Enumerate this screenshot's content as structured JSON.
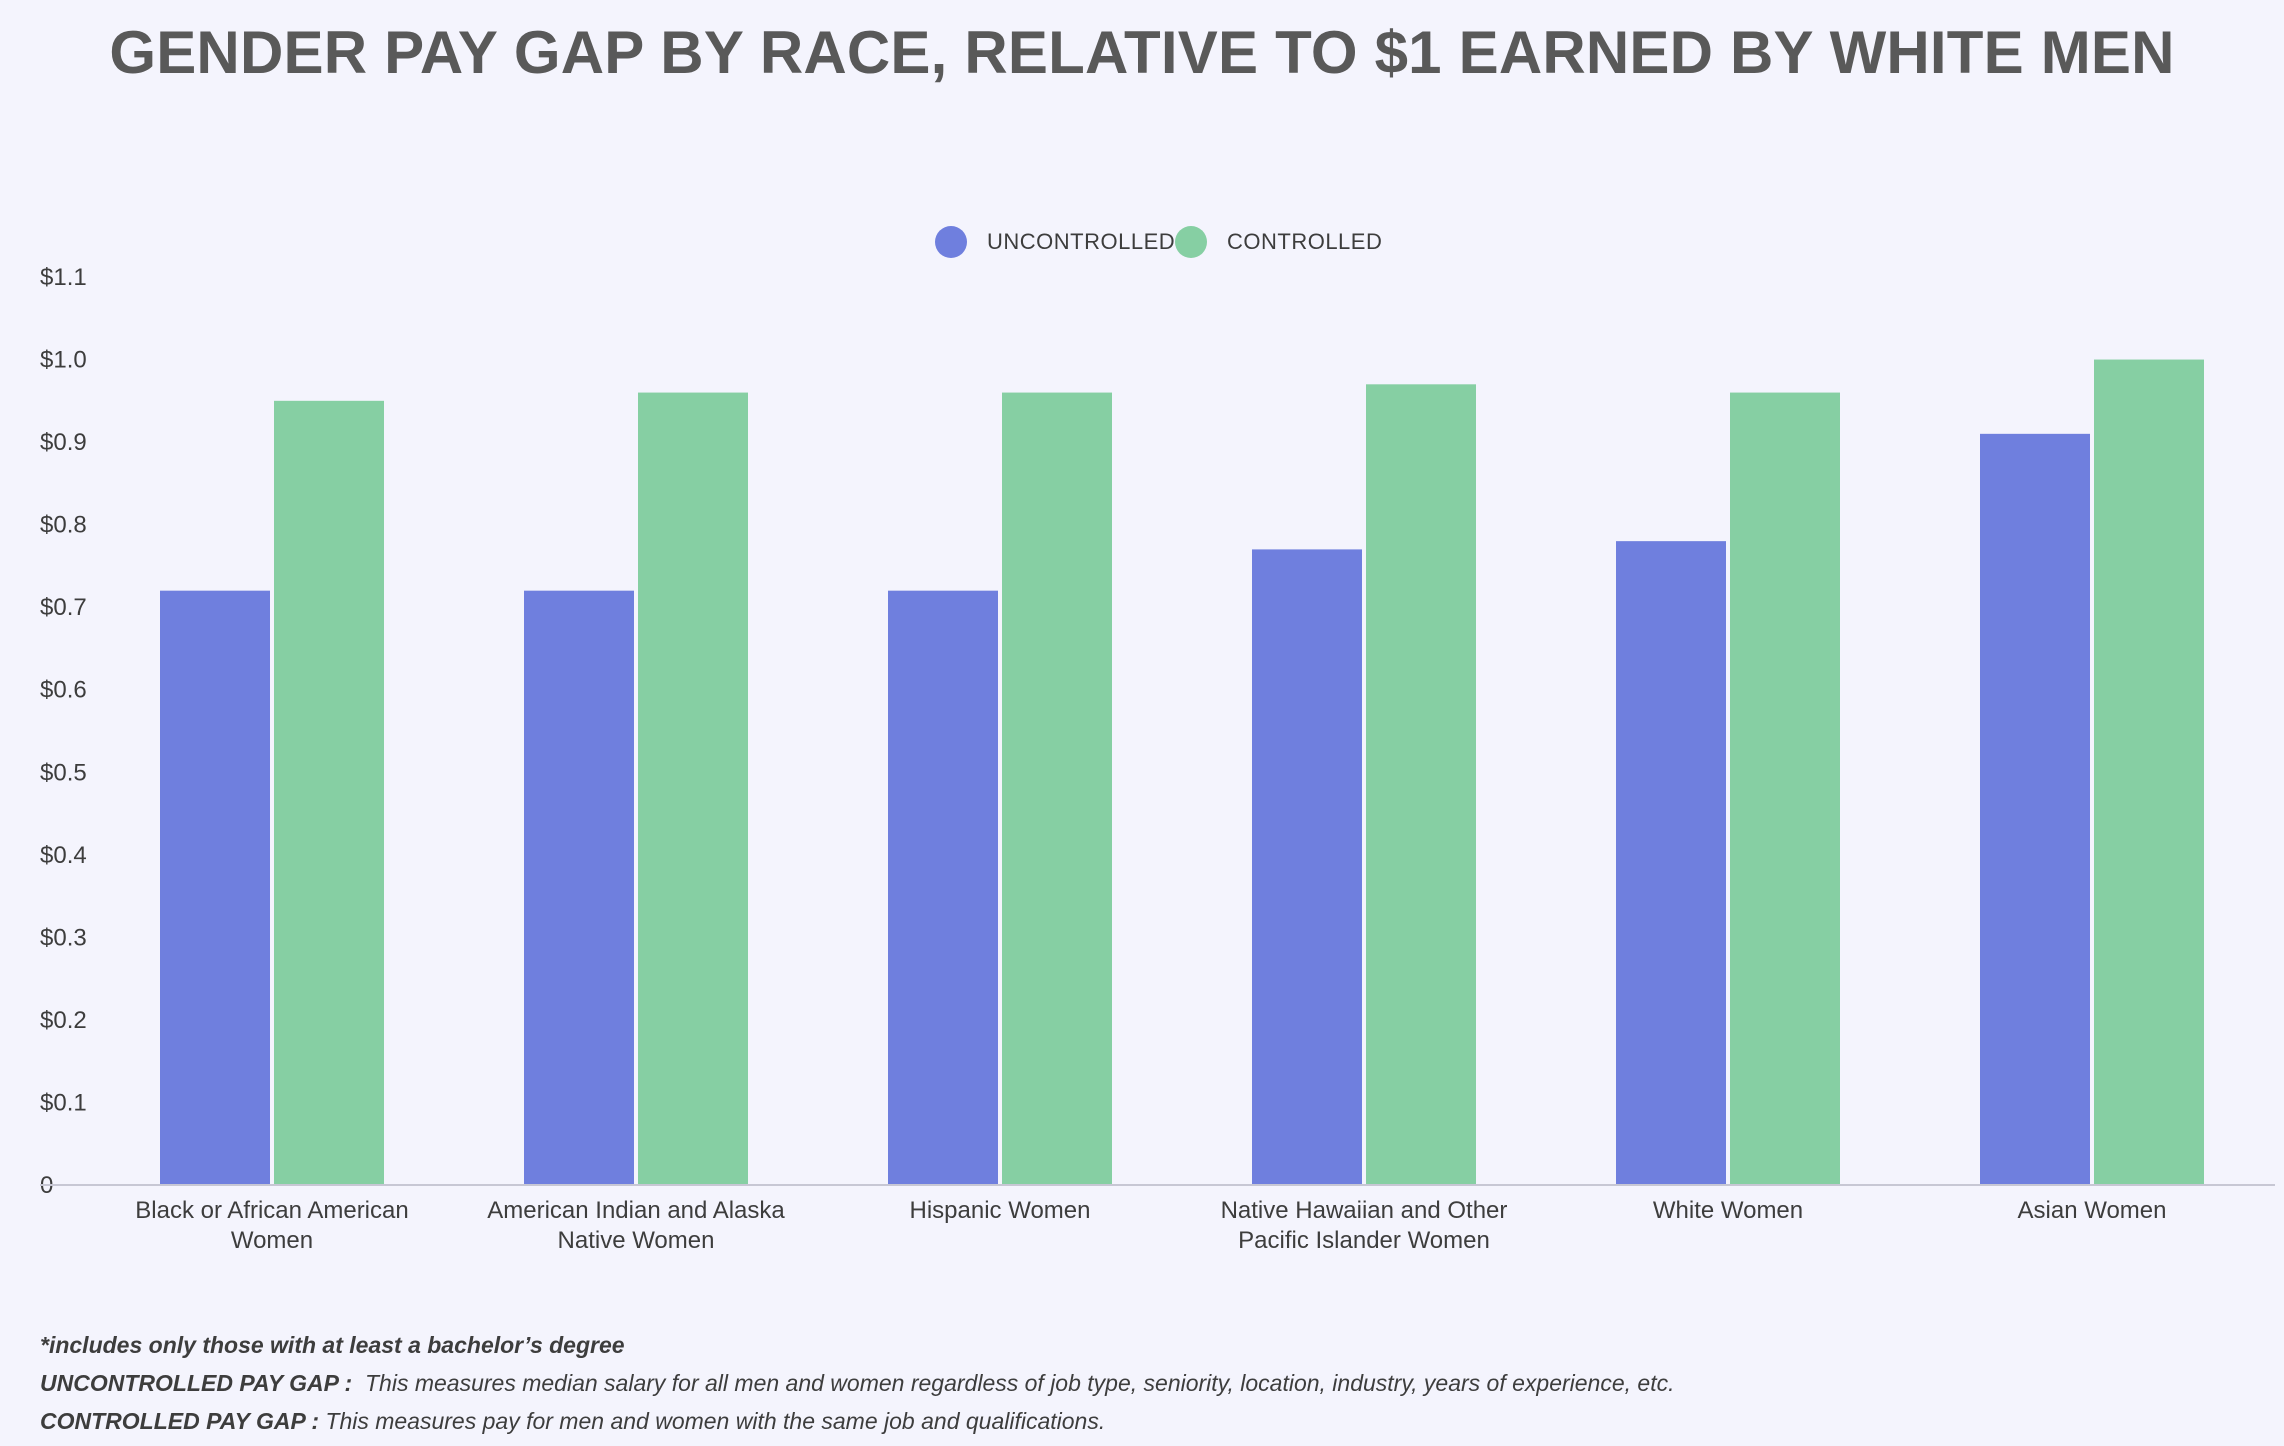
{
  "chart_data": {
    "type": "bar",
    "title": "GENDER PAY GAP BY RACE, RELATIVE TO $1 EARNED BY WHITE MEN",
    "categories": [
      [
        "Black or African American",
        "Women"
      ],
      [
        "American Indian and Alaska",
        "Native Women"
      ],
      [
        "Hispanic Women"
      ],
      [
        "Native Hawaiian and Other",
        "Pacific Islander Women"
      ],
      [
        "White Women"
      ],
      [
        "Asian Women"
      ]
    ],
    "series": [
      {
        "name": "UNCONTROLLED",
        "color": "#6f7fde",
        "values": [
          0.72,
          0.72,
          0.72,
          0.77,
          0.78,
          0.91
        ]
      },
      {
        "name": "CONTROLLED",
        "color": "#86cfa3",
        "values": [
          0.95,
          0.96,
          0.96,
          0.97,
          0.96,
          1.0
        ]
      }
    ],
    "ylim": [
      0,
      1.1
    ],
    "yticks": [
      {
        "value": 0,
        "label": "0"
      },
      {
        "value": 0.1,
        "label": "$0.1"
      },
      {
        "value": 0.2,
        "label": "$0.2"
      },
      {
        "value": 0.3,
        "label": "$0.3"
      },
      {
        "value": 0.4,
        "label": "$0.4"
      },
      {
        "value": 0.5,
        "label": "$0.5"
      },
      {
        "value": 0.6,
        "label": "$0.6"
      },
      {
        "value": 0.7,
        "label": "$0.7"
      },
      {
        "value": 0.8,
        "label": "$0.8"
      },
      {
        "value": 0.9,
        "label": "$0.9"
      },
      {
        "value": 1.0,
        "label": "$1.0"
      },
      {
        "value": 1.1,
        "label": "$1.1"
      }
    ],
    "xlabel": "",
    "ylabel": "",
    "grid": false,
    "legend_position": "top-center"
  },
  "footnotes": {
    "note1": "*includes only those with at least a bachelor’s degree",
    "note2_label": "UNCONTROLLED PAY GAP :",
    "note2_text": "  This measures median salary for all men and women regardless of job type, seniority, location, industry, years of experience, etc.",
    "note3_label": "CONTROLLED PAY GAP :",
    "note3_text": " This measures pay for men and women with the same job and qualifications."
  }
}
